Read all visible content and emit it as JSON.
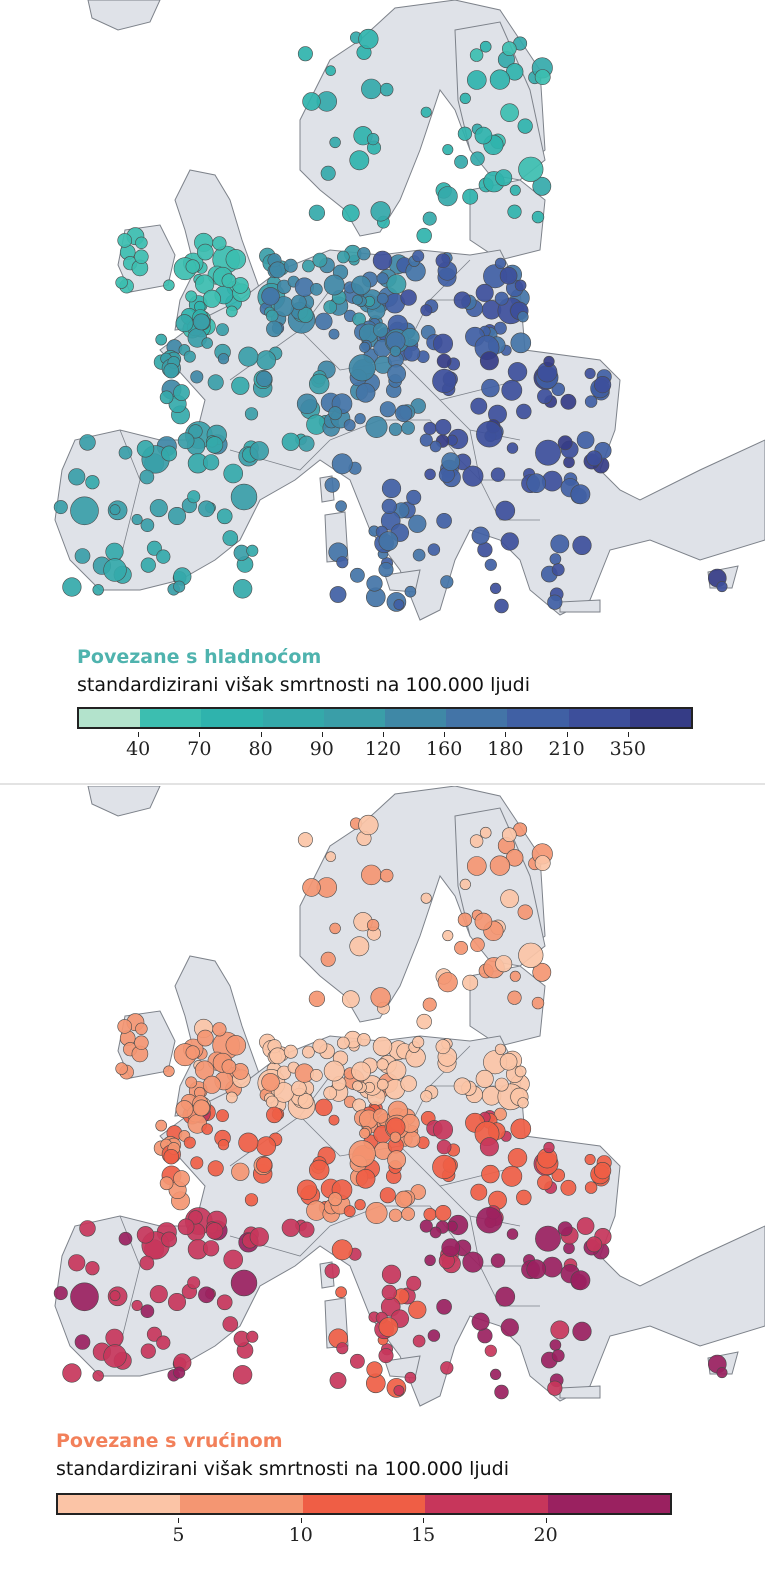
{
  "cold": {
    "title": "Povezane s hladnoćom",
    "subtitle": "standardizirani višak smrtnosti na 100.000 ljudi",
    "title_color": "#4fb3ae",
    "scale_colors": [
      "#b3e3cc",
      "#3cbeb0",
      "#2fb3ad",
      "#34a9aa",
      "#3a9ea8",
      "#3f88a6",
      "#4374a7",
      "#4060a4",
      "#3d4f9b",
      "#353c86"
    ],
    "ticks": [
      "40",
      "70",
      "80",
      "90",
      "120",
      "160",
      "180",
      "210",
      "350"
    ]
  },
  "heat": {
    "title": "Povezane s vrućinom",
    "subtitle": "standardizirani višak smrtnosti na 100.000 ljudi",
    "title_color": "#f2805a",
    "scale_colors": [
      "#fbc4a6",
      "#f49672",
      "#ef5e45",
      "#c7365b",
      "#9a2160"
    ],
    "ticks": [
      "5",
      "10",
      "15",
      "20"
    ]
  }
}
